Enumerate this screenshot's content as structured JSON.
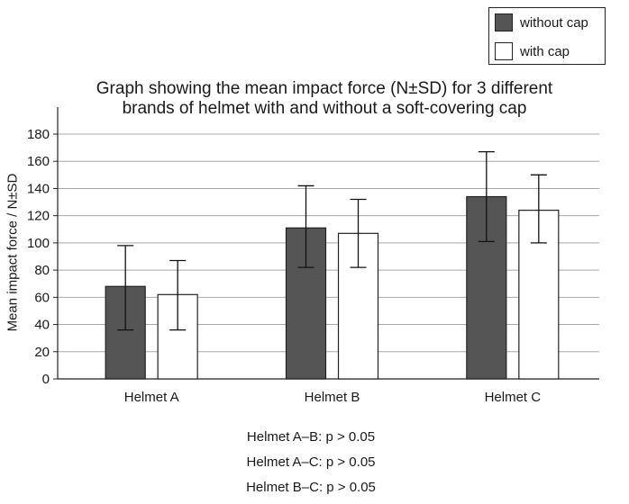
{
  "chart_data": {
    "type": "bar",
    "title_lines": [
      "Graph showing the mean impact force (N±SD) for 3 different",
      "brands of helmet with and without a soft-covering cap"
    ],
    "xlabel": "",
    "ylabel": "Mean impact force / N±SD",
    "categories": [
      "Helmet A",
      "Helmet B",
      "Helmet C"
    ],
    "ylim": [
      0,
      180
    ],
    "yticks": [
      0,
      20,
      40,
      60,
      80,
      100,
      120,
      140,
      160,
      180
    ],
    "grid": true,
    "legend_position": "top-right",
    "series": [
      {
        "name": "without cap",
        "color": "#555555",
        "values": [
          68,
          111,
          134
        ],
        "error_low": [
          36,
          82,
          101
        ],
        "error_high": [
          98,
          142,
          167
        ]
      },
      {
        "name": "with cap",
        "color": "#ffffff",
        "values": [
          62,
          107,
          124
        ],
        "error_low": [
          36,
          82,
          100
        ],
        "error_high": [
          87,
          132,
          150
        ]
      }
    ]
  },
  "notes": [
    "Helmet A–B: p > 0.05",
    "Helmet A–C: p > 0.05",
    "Helmet B–C: p > 0.05"
  ]
}
